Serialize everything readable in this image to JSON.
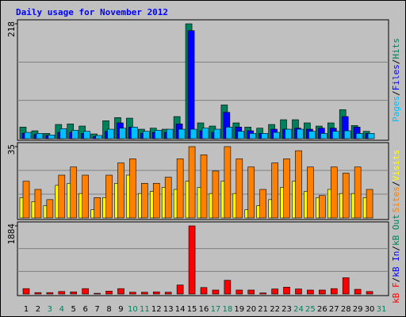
{
  "chart_data": {
    "type": "bar",
    "title": "Daily usage for November 2012",
    "title_color": "#0000ff",
    "categories": [
      "1",
      "2",
      "3",
      "4",
      "5",
      "6",
      "7",
      "8",
      "9",
      "10",
      "11",
      "12",
      "13",
      "14",
      "15",
      "16",
      "17",
      "18",
      "19",
      "20",
      "21",
      "22",
      "23",
      "24",
      "25",
      "26",
      "27",
      "28",
      "29",
      "30",
      "31"
    ],
    "label_colors": [
      "#000000",
      "#000000",
      "#00805c",
      "#00805c",
      "#000000",
      "#000000",
      "#000000",
      "#000000",
      "#000000",
      "#00805c",
      "#00805c",
      "#000000",
      "#000000",
      "#000000",
      "#000000",
      "#000000",
      "#00805c",
      "#00805c",
      "#000000",
      "#000000",
      "#000000",
      "#000000",
      "#000000",
      "#00805c",
      "#00805c",
      "#000000",
      "#000000",
      "#000000",
      "#000000",
      "#000000",
      "#00805c"
    ],
    "separator": "/",
    "panels": [
      {
        "ylim": [
          0,
          218
        ],
        "yticks": [
          218
        ],
        "series": [
          {
            "name": "Hits",
            "color": "#00805c",
            "values": [
              22,
              15,
              10,
              27,
              28,
              24,
              9,
              34,
              40,
              39,
              18,
              20,
              18,
              42,
              218,
              30,
              24,
              64,
              30,
              22,
              20,
              27,
              36,
              36,
              30,
              24,
              30,
              55,
              25,
              14,
              null
            ]
          },
          {
            "name": "Files",
            "color": "#0000ff",
            "values": [
              10,
              8,
              6,
              12,
              12,
              10,
              4,
              14,
              30,
              22,
              10,
              12,
              12,
              28,
              205,
              15,
              12,
              50,
              22,
              15,
              10,
              18,
              18,
              20,
              18,
              20,
              20,
              42,
              22,
              10,
              null
            ]
          },
          {
            "name": "Pages",
            "color": "#00c0ff",
            "values": [
              12,
              10,
              7,
              19,
              16,
              14,
              6,
              18,
              20,
              22,
              14,
              16,
              18,
              18,
              18,
              20,
              18,
              22,
              14,
              10,
              10,
              12,
              18,
              18,
              14,
              10,
              14,
              15,
              10,
              10,
              null
            ]
          }
        ],
        "legend_only": []
      },
      {
        "ylim": [
          0,
          35
        ],
        "yticks": [
          35
        ],
        "series": [
          {
            "name": "Visits",
            "color": "#ffff00",
            "values": [
              10,
              8,
              6,
              16,
              17,
              12,
              4,
              10,
              17,
              21,
              12,
              13,
              15,
              14,
              18,
              15,
              12,
              18,
              12,
              4,
              6,
              9,
              15,
              18,
              13,
              10,
              14,
              12,
              12,
              10,
              null
            ]
          },
          {
            "name": "Sites",
            "color": "#ff8000",
            "values": [
              18,
              14,
              9,
              21,
              25,
              21,
              10,
              21,
              27,
              29,
              17,
              17,
              20,
              29,
              35,
              31,
              23,
              35,
              29,
              25,
              14,
              27,
              29,
              33,
              25,
              11,
              25,
              22,
              25,
              14,
              null
            ]
          }
        ],
        "legend_only": []
      },
      {
        "ylim": [
          0,
          1884
        ],
        "yticks": [
          1884
        ],
        "series": [
          {
            "name": "kB F",
            "color": "#ff0000",
            "values": [
              150,
              40,
              40,
              70,
              60,
              150,
              20,
              80,
              150,
              50,
              50,
              60,
              50,
              250,
              1884,
              180,
              110,
              380,
              110,
              110,
              30,
              140,
              190,
              140,
              110,
              110,
              150,
              450,
              130,
              70,
              null
            ]
          }
        ],
        "legend_only": [
          {
            "name": "kB In",
            "color": "#0000ff"
          },
          {
            "name": "kB Out",
            "color": "#00805c"
          }
        ]
      }
    ]
  }
}
